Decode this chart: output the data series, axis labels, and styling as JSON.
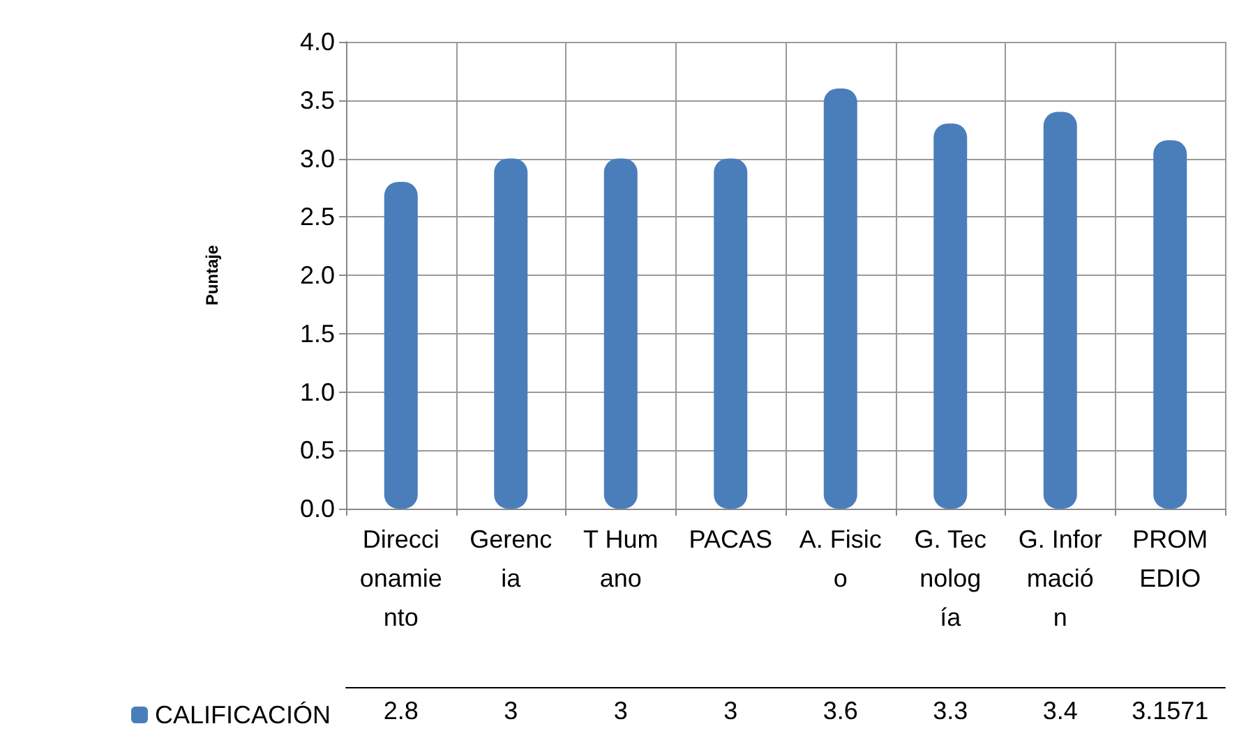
{
  "chart_data": {
    "type": "bar",
    "ylabel": "Puntaje",
    "categories": [
      "Direccionamiento",
      "Gerencia",
      "T Humano",
      "PACAS",
      "A. Fisico",
      "G. Tecnología",
      "G. Información",
      "PROMEDIO"
    ],
    "series": [
      {
        "name": "CALIFICACIÓN",
        "color": "#4a7ebb",
        "values": [
          2.8,
          3,
          3,
          3,
          3.6,
          3.3,
          3.4,
          3.1571
        ]
      }
    ],
    "ylim": [
      0,
      4
    ],
    "yticks": [
      {
        "value": 0,
        "label": "0.0"
      },
      {
        "value": 0.5,
        "label": "0.5"
      },
      {
        "value": 1,
        "label": "1.0"
      },
      {
        "value": 1.5,
        "label": "1.5"
      },
      {
        "value": 2,
        "label": "2.0"
      },
      {
        "value": 2.5,
        "label": "2.5"
      },
      {
        "value": 3,
        "label": "3.0"
      },
      {
        "value": 3.5,
        "label": "3.5"
      },
      {
        "value": 4,
        "label": "4.0"
      }
    ],
    "grid": "y",
    "legend": "bottom left",
    "data_labels": true
  }
}
